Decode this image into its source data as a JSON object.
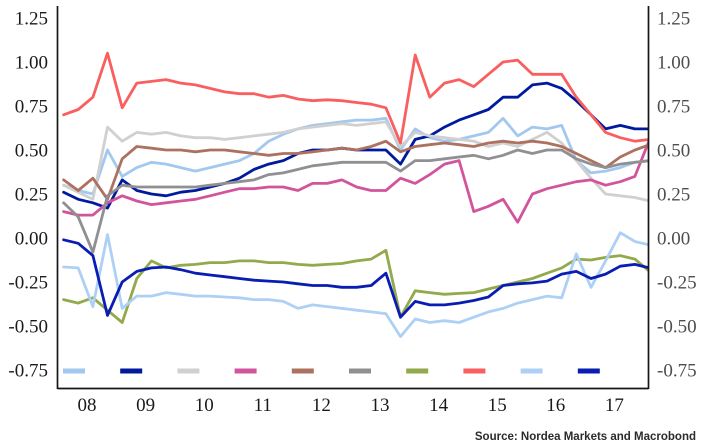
{
  "source_note": "Source: Nordea Markets and Macrobond",
  "chart_data": {
    "type": "line",
    "title": "",
    "xlabel": "",
    "ylabel": "",
    "grid": false,
    "background": "#ffffff",
    "axis_color": "#161616",
    "left_tick_color": "#1a1a1a",
    "right_tick_color": "#4d4d4d",
    "x_tick_color": "#1a1a1a",
    "ylim": [
      -0.85,
      1.31
    ],
    "xlim": [
      2007.5,
      2017.7
    ],
    "y_ticks": [
      "1.25",
      "1.00",
      "0.75",
      "0.50",
      "0.25",
      "0.00",
      "-0.25",
      "-0.50",
      "-0.75"
    ],
    "y_tick_values": [
      1.25,
      1.0,
      0.75,
      0.5,
      0.25,
      0.0,
      -0.25,
      -0.5,
      -0.75
    ],
    "x_tick_labels": [
      "08",
      "09",
      "10",
      "11",
      "12",
      "13",
      "14",
      "15",
      "16",
      "17"
    ],
    "x_tick_values": [
      2008,
      2009,
      2010,
      2011,
      2012,
      2013,
      2014,
      2015,
      2016,
      2017
    ],
    "legend_position": "bottom-inside",
    "legend_labels_visible": false,
    "x": [
      2007.6,
      2007.85,
      2008.1,
      2008.35,
      2008.6,
      2008.85,
      2009.1,
      2009.35,
      2009.6,
      2009.85,
      2010.1,
      2010.35,
      2010.6,
      2010.85,
      2011.1,
      2011.35,
      2011.6,
      2011.85,
      2012.1,
      2012.35,
      2012.6,
      2012.85,
      2013.1,
      2013.35,
      2013.6,
      2013.85,
      2014.1,
      2014.35,
      2014.6,
      2014.85,
      2015.1,
      2015.35,
      2015.6,
      2015.85,
      2016.1,
      2016.35,
      2016.6,
      2016.85,
      2017.1,
      2017.35,
      2017.6
    ],
    "series": [
      {
        "name": "light-blue-a",
        "color": "#a3c8ef",
        "values": [
          0.3,
          0.27,
          0.25,
          0.5,
          0.35,
          0.4,
          0.43,
          0.42,
          0.4,
          0.38,
          0.4,
          0.42,
          0.44,
          0.48,
          0.55,
          0.59,
          0.62,
          0.64,
          0.65,
          0.66,
          0.67,
          0.67,
          0.68,
          0.5,
          0.62,
          0.57,
          0.55,
          0.56,
          0.58,
          0.6,
          0.68,
          0.58,
          0.63,
          0.62,
          0.64,
          0.44,
          0.37,
          0.38,
          0.4,
          0.43,
          0.44
        ]
      },
      {
        "name": "dark-blue-a",
        "color": "#001a9e",
        "values": [
          0.26,
          0.22,
          0.2,
          0.17,
          0.33,
          0.27,
          0.25,
          0.24,
          0.26,
          0.27,
          0.29,
          0.31,
          0.34,
          0.39,
          0.42,
          0.44,
          0.48,
          0.5,
          0.5,
          0.51,
          0.5,
          0.5,
          0.5,
          0.42,
          0.56,
          0.58,
          0.63,
          0.67,
          0.7,
          0.73,
          0.8,
          0.8,
          0.87,
          0.88,
          0.85,
          0.78,
          0.7,
          0.62,
          0.64,
          0.62,
          0.62
        ]
      },
      {
        "name": "light-gray",
        "color": "#d0d0d0",
        "values": [
          0.3,
          0.26,
          0.22,
          0.63,
          0.55,
          0.6,
          0.59,
          0.6,
          0.58,
          0.57,
          0.57,
          0.56,
          0.57,
          0.58,
          0.59,
          0.6,
          0.62,
          0.63,
          0.64,
          0.65,
          0.64,
          0.65,
          0.66,
          0.52,
          0.6,
          0.58,
          0.57,
          0.56,
          0.55,
          0.52,
          0.54,
          0.52,
          0.56,
          0.6,
          0.54,
          0.44,
          0.34,
          0.25,
          0.24,
          0.23,
          0.21
        ]
      },
      {
        "name": "pink",
        "color": "#d2549c",
        "values": [
          0.15,
          0.13,
          0.13,
          0.2,
          0.24,
          0.21,
          0.19,
          0.2,
          0.21,
          0.22,
          0.24,
          0.26,
          0.28,
          0.28,
          0.29,
          0.29,
          0.27,
          0.31,
          0.31,
          0.33,
          0.29,
          0.27,
          0.27,
          0.34,
          0.31,
          0.36,
          0.42,
          0.44,
          0.15,
          0.18,
          0.22,
          0.09,
          0.25,
          0.28,
          0.3,
          0.32,
          0.33,
          0.3,
          0.32,
          0.35,
          0.56
        ]
      },
      {
        "name": "brown",
        "color": "#ad7160",
        "values": [
          0.33,
          0.27,
          0.34,
          0.22,
          0.45,
          0.52,
          0.51,
          0.5,
          0.5,
          0.49,
          0.5,
          0.5,
          0.49,
          0.48,
          0.47,
          0.48,
          0.48,
          0.49,
          0.5,
          0.51,
          0.5,
          0.52,
          0.55,
          0.49,
          0.52,
          0.53,
          0.54,
          0.53,
          0.52,
          0.54,
          0.55,
          0.54,
          0.55,
          0.54,
          0.52,
          0.48,
          0.44,
          0.4,
          0.46,
          0.5,
          0.53
        ]
      },
      {
        "name": "gray",
        "color": "#909093",
        "values": [
          0.2,
          0.12,
          -0.08,
          0.24,
          0.3,
          0.29,
          0.29,
          0.29,
          0.29,
          0.29,
          0.3,
          0.31,
          0.32,
          0.33,
          0.36,
          0.37,
          0.39,
          0.41,
          0.42,
          0.43,
          0.43,
          0.43,
          0.43,
          0.38,
          0.44,
          0.44,
          0.45,
          0.46,
          0.47,
          0.45,
          0.47,
          0.5,
          0.48,
          0.5,
          0.5,
          0.45,
          0.42,
          0.4,
          0.42,
          0.43,
          0.44
        ]
      },
      {
        "name": "olive-green",
        "color": "#92a94c",
        "values": [
          -0.35,
          -0.37,
          -0.34,
          -0.41,
          -0.48,
          -0.23,
          -0.13,
          -0.17,
          -0.155,
          -0.15,
          -0.14,
          -0.14,
          -0.13,
          -0.13,
          -0.14,
          -0.14,
          -0.15,
          -0.155,
          -0.15,
          -0.145,
          -0.13,
          -0.12,
          -0.07,
          -0.45,
          -0.3,
          -0.31,
          -0.32,
          -0.315,
          -0.31,
          -0.29,
          -0.27,
          -0.25,
          -0.23,
          -0.2,
          -0.17,
          -0.12,
          -0.125,
          -0.11,
          -0.1,
          -0.12,
          -0.19
        ]
      },
      {
        "name": "red",
        "color": "#f95f5e",
        "values": [
          0.7,
          0.73,
          0.8,
          1.05,
          0.74,
          0.88,
          0.89,
          0.9,
          0.88,
          0.87,
          0.85,
          0.83,
          0.82,
          0.82,
          0.8,
          0.81,
          0.79,
          0.78,
          0.785,
          0.78,
          0.77,
          0.76,
          0.74,
          0.54,
          1.04,
          0.8,
          0.88,
          0.9,
          0.86,
          0.93,
          1.0,
          1.01,
          0.93,
          0.93,
          0.93,
          0.8,
          0.7,
          0.6,
          0.57,
          0.55,
          0.56
        ]
      },
      {
        "name": "light-blue-b",
        "color": "#aed0f5",
        "values": [
          -0.165,
          -0.17,
          -0.39,
          0.02,
          -0.4,
          -0.33,
          -0.33,
          -0.31,
          -0.32,
          -0.33,
          -0.33,
          -0.335,
          -0.34,
          -0.35,
          -0.35,
          -0.36,
          -0.4,
          -0.38,
          -0.39,
          -0.4,
          -0.41,
          -0.42,
          -0.43,
          -0.56,
          -0.46,
          -0.48,
          -0.47,
          -0.48,
          -0.45,
          -0.42,
          -0.4,
          -0.37,
          -0.35,
          -0.33,
          -0.34,
          -0.09,
          -0.28,
          -0.13,
          0.03,
          -0.02,
          -0.04
        ]
      },
      {
        "name": "dark-blue-b",
        "color": "#0a1db2",
        "values": [
          -0.01,
          -0.03,
          -0.1,
          -0.44,
          -0.25,
          -0.19,
          -0.17,
          -0.165,
          -0.18,
          -0.2,
          -0.21,
          -0.22,
          -0.23,
          -0.24,
          -0.245,
          -0.25,
          -0.26,
          -0.27,
          -0.27,
          -0.28,
          -0.28,
          -0.27,
          -0.2,
          -0.45,
          -0.36,
          -0.38,
          -0.38,
          -0.37,
          -0.355,
          -0.335,
          -0.27,
          -0.26,
          -0.255,
          -0.245,
          -0.205,
          -0.19,
          -0.23,
          -0.205,
          -0.16,
          -0.15,
          -0.17
        ]
      }
    ]
  }
}
